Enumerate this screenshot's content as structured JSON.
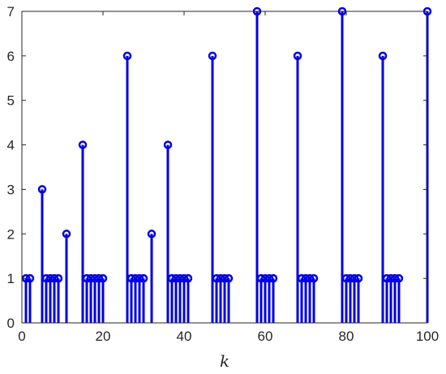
{
  "chart_data": {
    "type": "stem",
    "xlabel": "k",
    "ylabel": "",
    "title": "",
    "xlim": [
      0,
      100
    ],
    "ylim": [
      0,
      7
    ],
    "xticks": [
      0,
      20,
      40,
      60,
      80,
      100
    ],
    "yticks": [
      0,
      1,
      2,
      3,
      4,
      5,
      6,
      7
    ],
    "grid": false,
    "colors": {
      "stem": "#0000e6",
      "axes": "#262626"
    },
    "x": [
      1,
      2,
      5,
      6,
      7,
      8,
      9,
      11,
      15,
      16,
      17,
      18,
      19,
      20,
      26,
      27,
      28,
      29,
      30,
      32,
      36,
      37,
      38,
      39,
      40,
      41,
      47,
      48,
      49,
      50,
      51,
      58,
      59,
      60,
      61,
      62,
      68,
      69,
      70,
      71,
      72,
      79,
      80,
      81,
      82,
      83,
      89,
      90,
      91,
      92,
      93,
      100
    ],
    "y": [
      1,
      1,
      3,
      1,
      1,
      1,
      1,
      2,
      4,
      1,
      1,
      1,
      1,
      1,
      6,
      1,
      1,
      1,
      1,
      2,
      4,
      1,
      1,
      1,
      1,
      1,
      6,
      1,
      1,
      1,
      1,
      7,
      1,
      1,
      1,
      1,
      6,
      1,
      1,
      1,
      1,
      7,
      1,
      1,
      1,
      1,
      6,
      1,
      1,
      1,
      1,
      7
    ]
  }
}
